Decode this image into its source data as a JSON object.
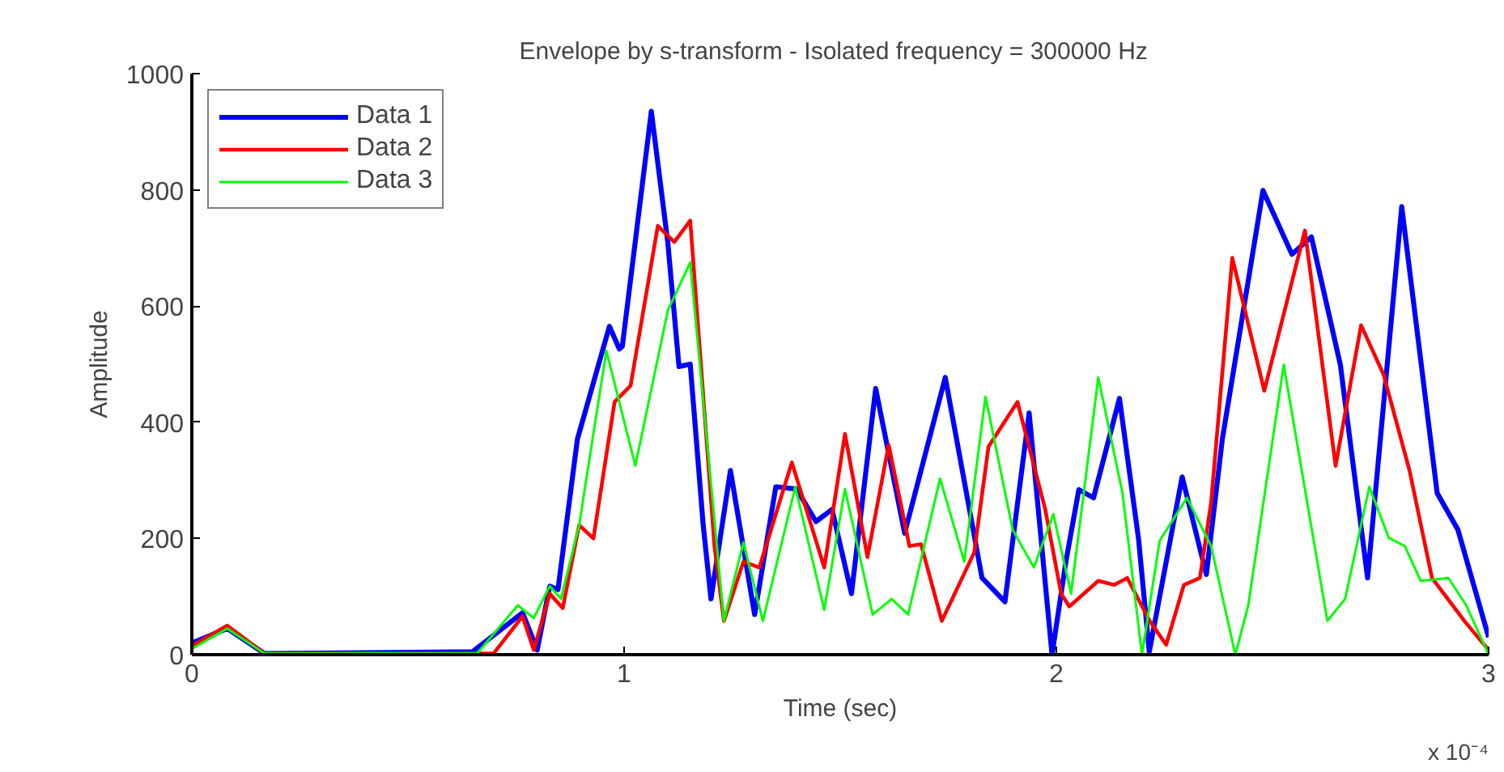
{
  "chart_data": {
    "type": "line",
    "title": "Envelope by s-transform  -  Isolated frequency = 300000 Hz",
    "xlabel": "Time (sec)",
    "ylabel": "Amplitude",
    "annotations": [
      "x 10⁻⁴"
    ],
    "xlim": [
      0,
      3
    ],
    "xticks": [
      0,
      1,
      2,
      3
    ],
    "ylim": [
      0,
      1000
    ],
    "yticks": [
      0,
      200,
      400,
      600,
      800,
      1000
    ],
    "grid": false,
    "legend": "top left",
    "series": [
      {
        "name": "Data 1",
        "color": "#0000ff",
        "x": [
          0,
          0.082,
          0.168,
          0.649,
          0.765,
          0.799,
          0.828,
          0.847,
          0.892,
          0.966,
          0.989,
          0.996,
          1.063,
          1.101,
          1.127,
          1.153,
          1.183,
          1.201,
          1.246,
          1.302,
          1.351,
          1.399,
          1.444,
          1.481,
          1.526,
          1.582,
          1.649,
          1.743,
          1.828,
          1.881,
          1.937,
          1.99,
          2.022,
          2.052,
          2.086,
          2.146,
          2.19,
          2.215,
          2.291,
          2.347,
          2.384,
          2.478,
          2.545,
          2.59,
          2.657,
          2.72,
          2.799,
          2.881,
          2.929,
          3.0
        ],
        "values": [
          20,
          45,
          2,
          5,
          72,
          8,
          118,
          112,
          371,
          565,
          526,
          531,
          935,
          710,
          496,
          500,
          223,
          96,
          317,
          69,
          289,
          285,
          229,
          250,
          105,
          458,
          209,
          477,
          132,
          91,
          416,
          0,
          160,
          284,
          270,
          441,
          200,
          5,
          306,
          138,
          371,
          799,
          689,
          719,
          499,
          132,
          771,
          278,
          215,
          30
        ]
      },
      {
        "name": "Data 2",
        "color": "#ff0000",
        "x": [
          0,
          0.082,
          0.168,
          0.698,
          0.765,
          0.791,
          0.828,
          0.858,
          0.896,
          0.929,
          0.978,
          1.015,
          1.078,
          1.116,
          1.153,
          1.209,
          1.231,
          1.276,
          1.313,
          1.388,
          1.463,
          1.511,
          1.563,
          1.612,
          1.66,
          1.687,
          1.735,
          1.81,
          1.843,
          1.91,
          1.974,
          2.011,
          2.03,
          2.097,
          2.134,
          2.164,
          2.216,
          2.254,
          2.295,
          2.332,
          2.358,
          2.407,
          2.481,
          2.575,
          2.646,
          2.705,
          2.757,
          2.817,
          2.869,
          2.944,
          3.0
        ],
        "values": [
          15,
          50,
          2,
          2,
          66,
          8,
          105,
          80,
          223,
          200,
          435,
          463,
          738,
          710,
          747,
          187,
          58,
          160,
          150,
          331,
          150,
          380,
          168,
          361,
          187,
          190,
          58,
          176,
          358,
          435,
          251,
          105,
          83,
          127,
          120,
          132,
          58,
          17,
          120,
          132,
          262,
          683,
          454,
          730,
          325,
          567,
          482,
          317,
          132,
          58,
          8
        ]
      },
      {
        "name": "Data 3",
        "color": "#00ff00",
        "x": [
          0,
          0.082,
          0.168,
          0.66,
          0.754,
          0.791,
          0.828,
          0.854,
          0.896,
          0.959,
          1.026,
          1.101,
          1.153,
          1.231,
          1.276,
          1.321,
          1.396,
          1.463,
          1.511,
          1.575,
          1.619,
          1.657,
          1.731,
          1.787,
          1.836,
          1.899,
          1.948,
          1.993,
          2.034,
          2.097,
          2.153,
          2.198,
          2.239,
          2.302,
          2.358,
          2.414,
          2.444,
          2.526,
          2.627,
          2.668,
          2.724,
          2.769,
          2.806,
          2.843,
          2.907,
          2.948,
          3.0
        ],
        "values": [
          10,
          45,
          2,
          2,
          85,
          63,
          118,
          96,
          223,
          523,
          325,
          592,
          675,
          58,
          193,
          58,
          289,
          77,
          285,
          69,
          96,
          69,
          303,
          160,
          444,
          215,
          150,
          242,
          105,
          477,
          278,
          0,
          196,
          270,
          187,
          0,
          85,
          499,
          58,
          96,
          289,
          201,
          187,
          127,
          132,
          85,
          0
        ]
      }
    ]
  }
}
